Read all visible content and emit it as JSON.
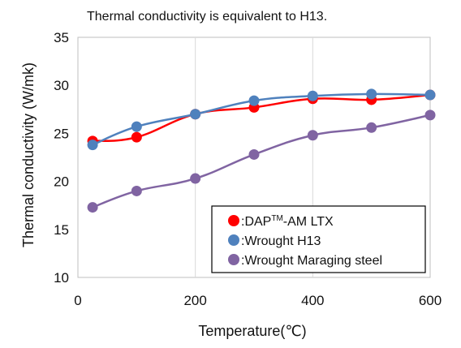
{
  "chart_data": {
    "type": "line",
    "title": "Thermal conductivity is equivalent to H13.",
    "xlabel": "Temperature(℃)",
    "ylabel": "Thermal conductivity (W/mk)",
    "xlim": [
      0,
      600
    ],
    "ylim": [
      10,
      35
    ],
    "xticks": [
      0,
      200,
      400,
      600
    ],
    "yticks": [
      10,
      15,
      20,
      25,
      30,
      35
    ],
    "grid": "vertical",
    "legend_position": "bottom-right",
    "series": [
      {
        "name": ":DAP-AM LTX",
        "legend_parts": [
          ":DAP",
          "TM",
          "-AM LTX"
        ],
        "color": "#ff0000",
        "x": [
          25,
          100,
          200,
          300,
          400,
          500,
          600
        ],
        "y": [
          24.2,
          24.6,
          27.0,
          27.7,
          28.6,
          28.5,
          29.0
        ]
      },
      {
        "name": ":Wrought H13",
        "color": "#4f81bd",
        "x": [
          25,
          100,
          200,
          300,
          400,
          500,
          600
        ],
        "y": [
          23.8,
          25.7,
          27.0,
          28.4,
          28.9,
          29.1,
          29.0
        ]
      },
      {
        "name": ":Wrought Maraging steel",
        "color": "#8064a2",
        "x": [
          25,
          100,
          200,
          300,
          400,
          500,
          600
        ],
        "y": [
          17.3,
          19.0,
          20.3,
          22.8,
          24.8,
          25.6,
          26.9
        ]
      }
    ]
  }
}
